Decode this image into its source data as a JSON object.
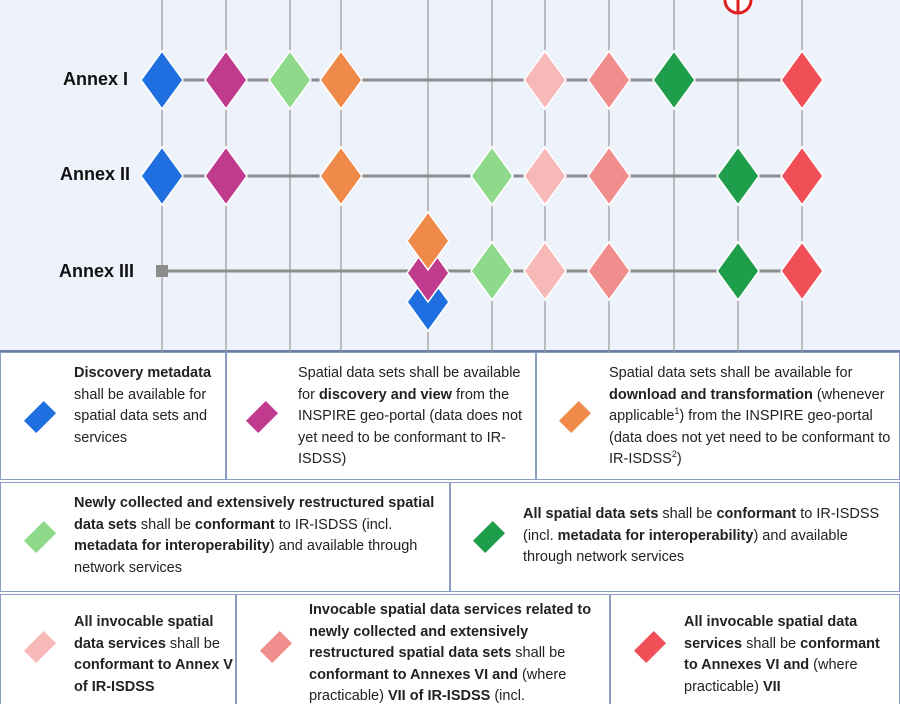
{
  "timeline": {
    "rows": [
      {
        "label": "Annex I"
      },
      {
        "label": "Annex II"
      },
      {
        "label": "Annex III"
      }
    ]
  },
  "legend": {
    "discovery": {
      "color": "#1f6fe0",
      "bold1": "Discovery metadata",
      "text1": " shall be available for spatial data sets and services"
    },
    "view": {
      "color": "#c03a8e",
      "text1": "Spatial data sets shall be available for ",
      "bold1": "discovery and view",
      "text2": " from the INSPIRE geo-portal (data does not yet need to be conformant to IR-ISDSS)"
    },
    "download": {
      "color": "#f08a4b",
      "text1": "Spatial data sets shall be available for ",
      "bold1": "download and transformation",
      "text2": " (whenever applicable",
      "sup1": "1",
      "text3": ") from the INSPIRE geo-portal (data does not yet need to be conformant to IR-ISDSS",
      "sup2": "2",
      "text4": ")"
    },
    "newly": {
      "color": "#8ed98a",
      "bold1": "Newly collected and extensively restructured spatial data sets",
      "text1": " shall be ",
      "bold2": "conformant",
      "text2": " to IR-ISDSS (incl. ",
      "bold3": "metadata for interoperability",
      "text3": ") and available through network services"
    },
    "all": {
      "color": "#1e9e4a",
      "bold1": "All spatial data sets",
      "text1": " shall be ",
      "bold2": "conformant",
      "text2": " to IR-ISDSS (incl. ",
      "bold3": "metadata for interoperability",
      "text3": ") and available through network services"
    },
    "invocable_v": {
      "color": "#f7b8b8",
      "bold1": "All invocable spatial data services",
      "text1": " shall be ",
      "bold2": "conformant to Annex V of IR-ISDSS"
    },
    "invocable_new": {
      "color": "#f08e8e",
      "bold1": "Invocable spatial data services related to newly collected and extensively restructured spatial data sets",
      "text1": " shall be ",
      "bold2": "conformant to Annexes VI and",
      "text2": " (where practicable) ",
      "bold3": "VII of IR-ISDSS",
      "text3": " (incl."
    },
    "invocable_all": {
      "color": "#f04f58",
      "bold1": "All invocable spatial data services",
      "text1": " shall be ",
      "bold2": "conformant to Annexes VI and",
      "text2": " (where practicable) ",
      "bold3": "VII"
    }
  }
}
